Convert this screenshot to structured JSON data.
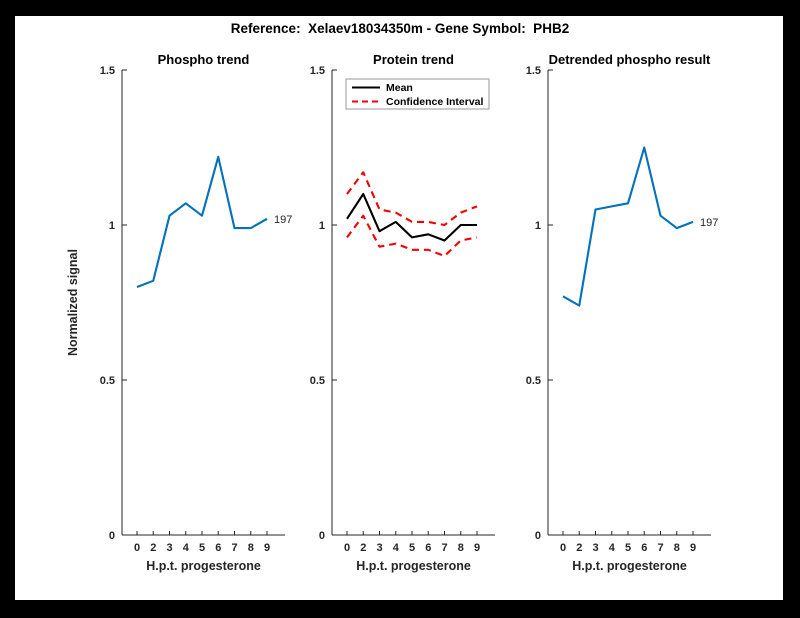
{
  "figure": {
    "title": "Reference:  Xelaev18034350m - Gene Symbol:  PHB2",
    "frame_color": "#000000",
    "canvas_color": "#ffffff",
    "accent_blue": "#0072BD",
    "accent_red": "#f40000"
  },
  "chart_data": [
    {
      "id": "phospho-trend",
      "type": "line",
      "title": "Phospho trend",
      "xlabel": "H.p.t. progesterone",
      "ylabel": "Normalized signal",
      "x_tick_labels": [
        "0",
        "2",
        "3",
        "4",
        "5",
        "6",
        "7",
        "8",
        "9"
      ],
      "y_ticks": [
        0,
        0.5,
        1,
        1.5
      ],
      "y_tick_labels": [
        "0",
        "0.5",
        "1",
        "1.5"
      ],
      "ylim": [
        0,
        1.5
      ],
      "grid": false,
      "legend": null,
      "series": [
        {
          "name": "phospho-signal",
          "color": "#0072BD",
          "style": "solid",
          "values": [
            0.8,
            0.82,
            1.03,
            1.07,
            1.03,
            1.22,
            0.99,
            0.99,
            1.02
          ],
          "end_label": "197"
        }
      ]
    },
    {
      "id": "protein-trend",
      "type": "line",
      "title": "Protein trend",
      "xlabel": "H.p.t. progesterone",
      "ylabel": null,
      "x_tick_labels": [
        "0",
        "2",
        "3",
        "4",
        "5",
        "6",
        "7",
        "8",
        "9"
      ],
      "y_ticks": [
        0,
        0.5,
        1,
        1.5
      ],
      "y_tick_labels": [
        "0",
        "0.5",
        "1",
        "1.5"
      ],
      "ylim": [
        0,
        1.5
      ],
      "grid": false,
      "legend": {
        "position": "northwest",
        "entries": [
          {
            "label": "Mean",
            "color": "#000000",
            "dashed": false
          },
          {
            "label": "Confidence Interval",
            "color": "#f40000",
            "dashed": true
          }
        ]
      },
      "series": [
        {
          "name": "mean",
          "color": "#000000",
          "style": "solid",
          "values": [
            1.02,
            1.1,
            0.98,
            1.01,
            0.96,
            0.97,
            0.95,
            1.0,
            1.0
          ],
          "end_label": null
        },
        {
          "name": "confidence-upper",
          "color": "#f40000",
          "style": "dashed",
          "values": [
            1.1,
            1.17,
            1.05,
            1.04,
            1.01,
            1.01,
            1.0,
            1.04,
            1.06
          ],
          "end_label": null
        },
        {
          "name": "confidence-lower",
          "color": "#f40000",
          "style": "dashed",
          "values": [
            0.96,
            1.03,
            0.93,
            0.94,
            0.92,
            0.92,
            0.9,
            0.95,
            0.96
          ],
          "end_label": null
        }
      ]
    },
    {
      "id": "detrended-phospho-result",
      "type": "line",
      "title": "Detrended phospho result",
      "xlabel": "H.p.t. progesterone",
      "ylabel": null,
      "x_tick_labels": [
        "0",
        "2",
        "3",
        "4",
        "5",
        "6",
        "7",
        "8",
        "9"
      ],
      "y_ticks": [
        0,
        0.5,
        1,
        1.5
      ],
      "y_tick_labels": [
        "0",
        "0.5",
        "1",
        "1.5"
      ],
      "ylim": [
        0,
        1.5
      ],
      "grid": false,
      "legend": null,
      "series": [
        {
          "name": "detrended-signal",
          "color": "#0072BD",
          "style": "solid",
          "values": [
            0.77,
            0.74,
            1.05,
            1.06,
            1.07,
            1.25,
            1.03,
            0.99,
            1.01
          ],
          "end_label": "197"
        }
      ]
    }
  ]
}
